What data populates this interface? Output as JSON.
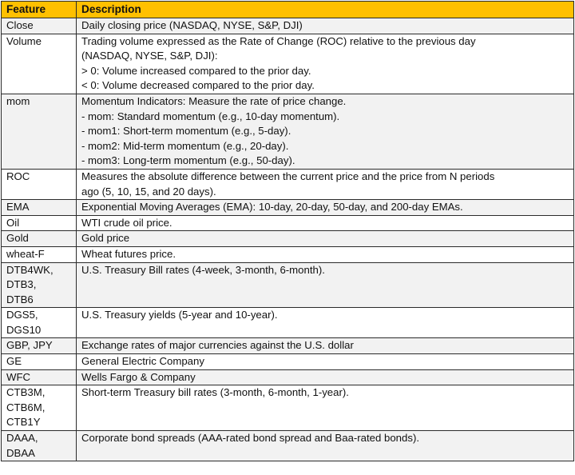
{
  "table": {
    "headers": [
      "Feature",
      "Description"
    ],
    "header_color": "#ffc000",
    "stripe_color": "#f2f2f2",
    "rows": [
      {
        "feature": [
          "Close"
        ],
        "description": [
          "Daily closing price (NASDAQ, NYSE, S&P, DJI)"
        ]
      },
      {
        "feature": [
          "Volume"
        ],
        "description": [
          "Trading volume expressed as the Rate of Change (ROC) relative to the previous day",
          "(NASDAQ, NYSE, S&P, DJI):",
          "> 0: Volume increased compared to the prior day.",
          "< 0: Volume decreased compared to the prior day."
        ]
      },
      {
        "feature": [
          "mom"
        ],
        "description": [
          "Momentum Indicators: Measure the rate of price change.",
          "- mom: Standard momentum (e.g., 10-day momentum).",
          "- mom1: Short-term momentum (e.g., 5-day).",
          "- mom2: Mid-term momentum (e.g., 20-day).",
          "- mom3: Long-term momentum (e.g., 50-day)."
        ]
      },
      {
        "feature": [
          "ROC"
        ],
        "description": [
          "Measures the absolute difference between the current price and the price from N periods",
          "ago (5, 10, 15, and 20 days)."
        ]
      },
      {
        "feature": [
          "EMA"
        ],
        "description": [
          "Exponential Moving Averages (EMA): 10-day, 20-day, 50-day, and 200-day EMAs."
        ]
      },
      {
        "feature": [
          "Oil"
        ],
        "description": [
          "WTI crude oil price."
        ]
      },
      {
        "feature": [
          "Gold"
        ],
        "description": [
          "Gold price"
        ]
      },
      {
        "feature": [
          "wheat-F"
        ],
        "description": [
          "Wheat futures price."
        ]
      },
      {
        "feature": [
          "DTB4WK,",
          "DTB3,",
          "DTB6"
        ],
        "description": [
          "U.S. Treasury Bill rates (4-week, 3-month, 6-month)."
        ]
      },
      {
        "feature": [
          "DGS5,",
          "DGS10"
        ],
        "description": [
          "U.S. Treasury yields (5-year and 10-year)."
        ]
      },
      {
        "feature": [
          "GBP, JPY"
        ],
        "description": [
          "Exchange rates of major currencies against the U.S. dollar"
        ]
      },
      {
        "feature": [
          "GE"
        ],
        "description": [
          "General Electric Company"
        ]
      },
      {
        "feature": [
          "WFC"
        ],
        "description": [
          "Wells Fargo & Company"
        ]
      },
      {
        "feature": [
          "CTB3M,",
          "CTB6M,",
          "CTB1Y"
        ],
        "description": [
          "Short-term Treasury bill rates (3-month, 6-month, 1-year)."
        ]
      },
      {
        "feature": [
          "DAAA,",
          "DBAA"
        ],
        "description": [
          "Corporate bond spreads (AAA-rated bond spread and Baa-rated bonds)."
        ]
      }
    ]
  }
}
